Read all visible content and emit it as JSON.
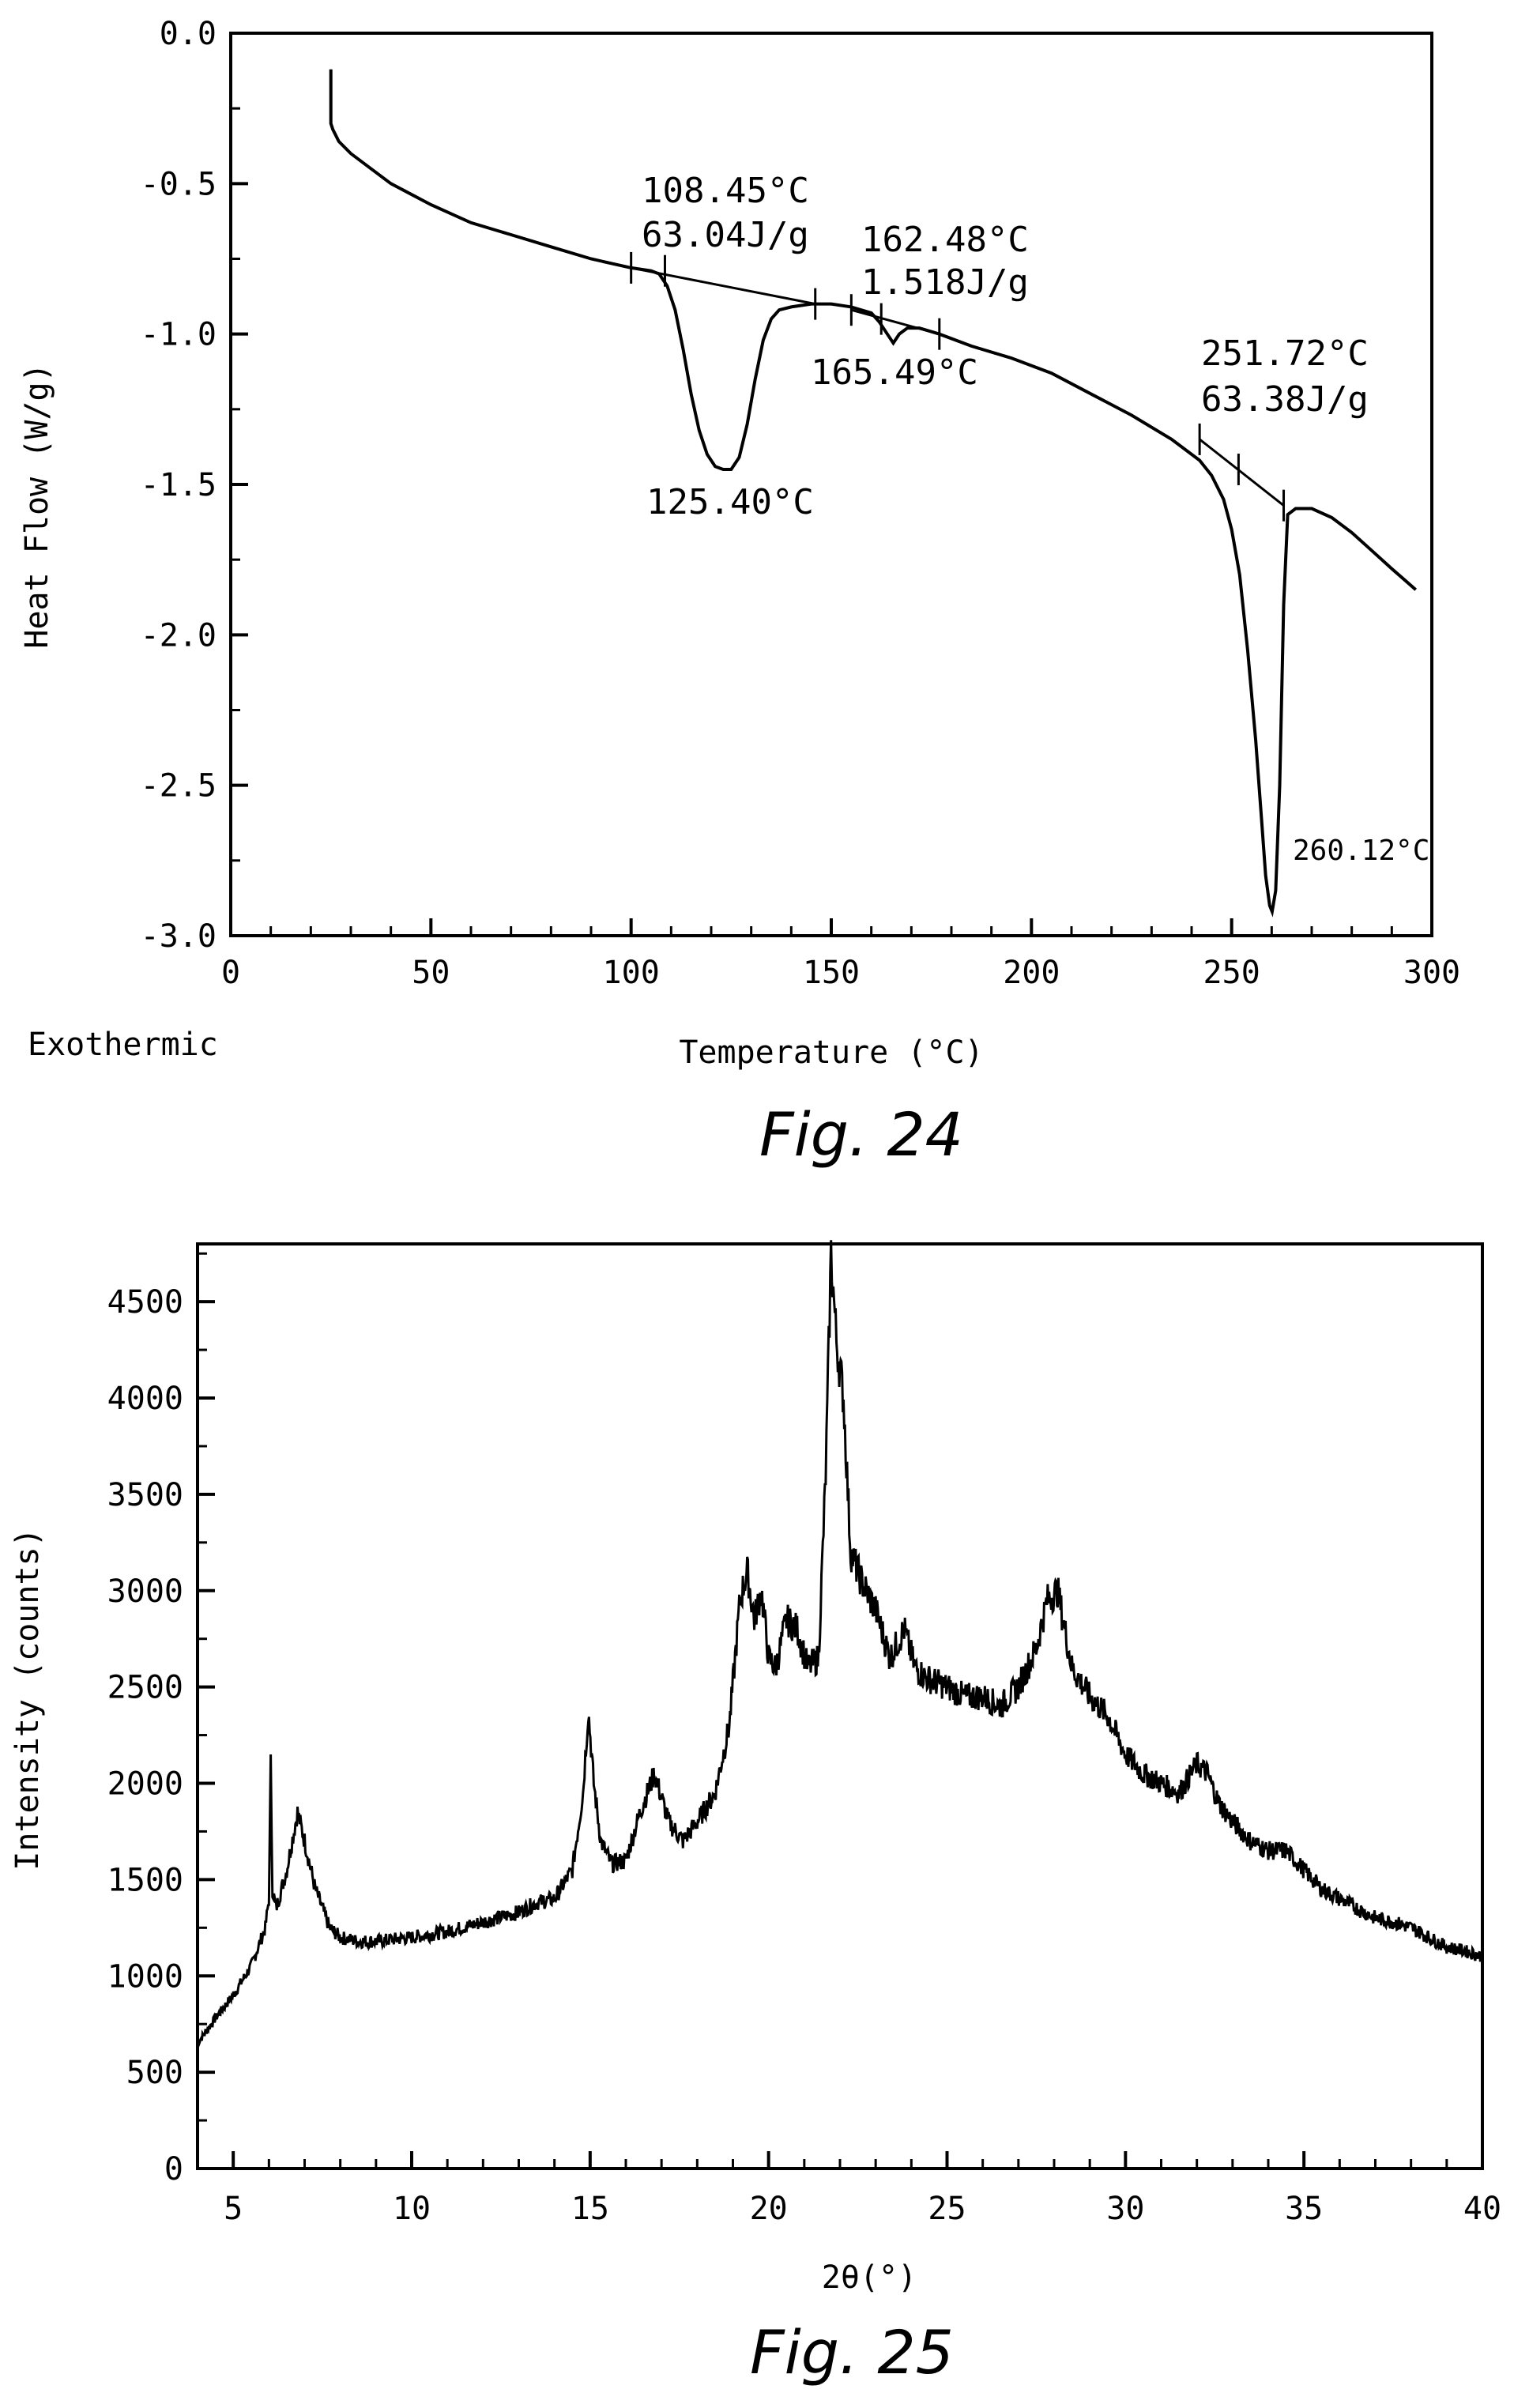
{
  "chart_data": [
    {
      "type": "line",
      "figure_label": "Fig. 24",
      "xlabel": "Temperature (°C)",
      "ylabel": "Heat Flow (W/g)",
      "corner_label": "Exothermic",
      "xlim": [
        0,
        300
      ],
      "ylim": [
        -3.0,
        0.0
      ],
      "xticks": [
        0,
        50,
        100,
        150,
        200,
        250,
        300
      ],
      "yticks": [
        0.0,
        -0.5,
        -1.0,
        -1.5,
        -2.0,
        -2.5,
        -3.0
      ],
      "xtick_labels": [
        "0",
        "50",
        "100",
        "150",
        "200",
        "250",
        "300"
      ],
      "ytick_labels": [
        "0.0",
        "-0.5",
        "-1.0",
        "-1.5",
        "-2.0",
        "-2.5",
        "-3.0"
      ],
      "series": [
        {
          "x": [
            25,
            25,
            25.5,
            27,
            30,
            35,
            40,
            50,
            60,
            70,
            80,
            90,
            100,
            105,
            107,
            109,
            111,
            113,
            115,
            117,
            119,
            121,
            123,
            125,
            127,
            129,
            131,
            133,
            135,
            137,
            140,
            145,
            150,
            155,
            160,
            162,
            164,
            165.5,
            167,
            169,
            172,
            177,
            185,
            195,
            205,
            215,
            225,
            235,
            242,
            245,
            248,
            250,
            252,
            254,
            256,
            257.5,
            258.5,
            259.5,
            260.12,
            261,
            262,
            263,
            264,
            266,
            270,
            275,
            280,
            285,
            290,
            296
          ],
          "y": [
            -0.12,
            -0.3,
            -0.32,
            -0.36,
            -0.4,
            -0.45,
            -0.5,
            -0.57,
            -0.63,
            -0.67,
            -0.71,
            -0.75,
            -0.78,
            -0.79,
            -0.8,
            -0.84,
            -0.92,
            -1.05,
            -1.2,
            -1.32,
            -1.4,
            -1.44,
            -1.45,
            -1.45,
            -1.41,
            -1.3,
            -1.15,
            -1.02,
            -0.95,
            -0.92,
            -0.91,
            -0.9,
            -0.9,
            -0.91,
            -0.93,
            -0.96,
            -1.0,
            -1.03,
            -1.0,
            -0.98,
            -0.98,
            -1.0,
            -1.04,
            -1.08,
            -1.13,
            -1.2,
            -1.27,
            -1.35,
            -1.42,
            -1.47,
            -1.55,
            -1.65,
            -1.8,
            -2.05,
            -2.35,
            -2.62,
            -2.8,
            -2.9,
            -2.92,
            -2.85,
            -2.5,
            -1.9,
            -1.6,
            -1.58,
            -1.58,
            -1.61,
            -1.66,
            -1.72,
            -1.78,
            -1.85
          ]
        }
      ],
      "annotations": [
        {
          "text": "108.45°C",
          "x": 108.45
        },
        {
          "text": "63.04J/g",
          "x": 108.45
        },
        {
          "text": "125.40°C",
          "x": 125.4
        },
        {
          "text": "162.48°C",
          "x": 162.48
        },
        {
          "text": "1.518J/g",
          "x": 162.48
        },
        {
          "text": "165.49°C",
          "x": 165.49
        },
        {
          "text": "251.72°C",
          "x": 251.72
        },
        {
          "text": "63.38J/g",
          "x": 251.72
        },
        {
          "text": "260.12°C",
          "x": 260.12
        }
      ]
    },
    {
      "type": "line",
      "figure_label": "Fig. 25",
      "xlabel": "2θ(°)",
      "ylabel": "Intensity (counts)",
      "xlim": [
        4,
        40
      ],
      "ylim": [
        0,
        4800
      ],
      "xticks": [
        5,
        10,
        15,
        20,
        25,
        30,
        35,
        40
      ],
      "yticks": [
        0,
        500,
        1000,
        1500,
        2000,
        2500,
        3000,
        3500,
        4000,
        4500
      ],
      "xtick_labels": [
        "5",
        "10",
        "15",
        "20",
        "25",
        "30",
        "35",
        "40"
      ],
      "ytick_labels": [
        "0",
        "500",
        "1000",
        "1500",
        "2000",
        "2500",
        "3000",
        "3500",
        "4000",
        "4500"
      ],
      "series": [
        {
          "x": [
            4.0,
            4.5,
            5.0,
            5.5,
            5.9,
            6.0,
            6.05,
            6.1,
            6.2,
            6.5,
            6.8,
            7.0,
            7.3,
            7.7,
            8.0,
            8.5,
            9,
            10,
            11,
            12,
            13,
            13.5,
            14,
            14.5,
            14.8,
            14.95,
            15.1,
            15.3,
            15.6,
            16,
            16.4,
            16.8,
            17.2,
            17.6,
            18,
            18.5,
            18.9,
            19.2,
            19.4,
            19.6,
            19.8,
            20.0,
            20.2,
            20.5,
            20.8,
            21.1,
            21.4,
            21.6,
            21.75,
            21.9,
            22.1,
            22.3,
            22.6,
            23.0,
            23.4,
            23.8,
            24.1,
            24.4,
            25,
            25.5,
            26,
            26.5,
            27,
            27.5,
            27.8,
            28.1,
            28.5,
            29,
            29.5,
            30,
            30.5,
            31,
            31.5,
            32,
            32.3,
            32.6,
            33,
            33.5,
            34,
            34.5,
            35,
            35.5,
            36,
            36.5,
            37,
            37.5,
            38,
            38.5,
            39,
            39.5,
            40
          ],
          "y": [
            650,
            780,
            900,
            1050,
            1250,
            1400,
            2100,
            1450,
            1350,
            1550,
            1850,
            1700,
            1450,
            1250,
            1200,
            1180,
            1180,
            1200,
            1230,
            1280,
            1330,
            1380,
            1400,
            1550,
            1950,
            2380,
            2000,
            1700,
            1580,
            1600,
            1850,
            2050,
            1800,
            1700,
            1800,
            1950,
            2300,
            2950,
            3100,
            2850,
            3000,
            2650,
            2600,
            2850,
            2800,
            2600,
            2650,
            3600,
            4750,
            4300,
            4000,
            3200,
            3050,
            2900,
            2650,
            2800,
            2600,
            2550,
            2500,
            2450,
            2450,
            2400,
            2500,
            2700,
            2950,
            3000,
            2600,
            2450,
            2350,
            2150,
            2050,
            2000,
            1950,
            2100,
            2050,
            1900,
            1800,
            1700,
            1650,
            1650,
            1550,
            1450,
            1400,
            1350,
            1300,
            1280,
            1250,
            1200,
            1150,
            1130,
            1100
          ]
        }
      ]
    }
  ]
}
